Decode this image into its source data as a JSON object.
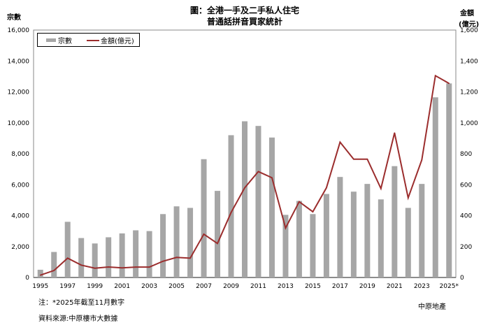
{
  "chart_data": {
    "type": "bar+line",
    "title": "圖：全港一手及二手私人住宅",
    "subtitle": "普通話拼音買家統計",
    "ylabel_left": "宗數",
    "ylabel_right": "金額",
    "ylabel_right_unit": "(億元)",
    "ylim_left": [
      0,
      16000
    ],
    "ylim_right": [
      0,
      1600
    ],
    "yticks_left": [
      "0",
      "2,000",
      "4,000",
      "6,000",
      "8,000",
      "10,000",
      "12,000",
      "14,000",
      "16,000"
    ],
    "yticks_right": [
      "0",
      "200",
      "400",
      "600",
      "800",
      "1,000",
      "1,200",
      "1,400",
      "1,600"
    ],
    "categories": [
      1995,
      1996,
      1997,
      1998,
      1999,
      2000,
      2001,
      2002,
      2003,
      2004,
      2005,
      2006,
      2007,
      2008,
      2009,
      2010,
      2011,
      2012,
      2013,
      2014,
      2015,
      2016,
      2017,
      2018,
      2019,
      2020,
      2021,
      2022,
      2023,
      2024,
      2025
    ],
    "xtick_labels": [
      "1995",
      "1997",
      "1999",
      "2001",
      "2003",
      "2005",
      "2007",
      "2009",
      "2011",
      "2013",
      "2015",
      "2017",
      "2019",
      "2021",
      "2023",
      "2025*"
    ],
    "legend_position": "top-left",
    "series": [
      {
        "name": "宗數",
        "type": "bar",
        "axis": "left",
        "color": "#a6a6a6",
        "values": [
          500,
          1650,
          3600,
          2550,
          2200,
          2600,
          2850,
          3050,
          3000,
          4100,
          4600,
          4500,
          7650,
          5600,
          9200,
          10100,
          9800,
          9050,
          4050,
          4950,
          4100,
          5400,
          6500,
          5550,
          6050,
          5050,
          7200,
          4500,
          6050,
          11650,
          12550
        ]
      },
      {
        "name": "金額(億元)",
        "type": "line",
        "axis": "right",
        "color": "#9b2d2d",
        "values": [
          15,
          45,
          125,
          80,
          60,
          68,
          62,
          67,
          67,
          105,
          130,
          125,
          280,
          220,
          420,
          580,
          685,
          645,
          320,
          490,
          425,
          580,
          875,
          765,
          765,
          575,
          935,
          515,
          760,
          1305,
          1255
        ]
      }
    ]
  },
  "notes": {
    "note": "注：*2025年截至11月數字",
    "source": "資料來源:中原樓市大數據",
    "brand": "中原地產"
  }
}
